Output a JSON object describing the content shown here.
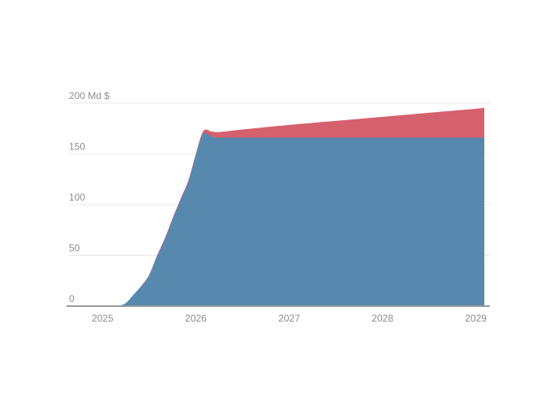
{
  "chart_data": {
    "type": "area",
    "stacked": true,
    "title": "",
    "unit_label": "Md $",
    "grid": true,
    "legend_position": "none",
    "x_ticks": [
      2025,
      2026,
      2027,
      2028,
      2029
    ],
    "x_tick_labels": [
      "2025",
      "2026",
      "2027",
      "2028",
      "2029"
    ],
    "y_ticks": [
      0,
      50,
      100,
      150,
      200
    ],
    "y_tick_labels": [
      "0",
      "50",
      "100",
      "150",
      "200 Md $"
    ],
    "xlim": [
      2024.64,
      2029.15
    ],
    "ylim": [
      0,
      200
    ],
    "colors": {
      "background": "#ffffff",
      "gridline": "#e8e8e8",
      "axis_line": "#999999",
      "tick_text": "#8d8d8d",
      "blue_area": "#5689ad",
      "red_area": "#d5606e"
    },
    "x": [
      2025.17,
      2025.25,
      2025.33,
      2025.42,
      2025.5,
      2025.58,
      2025.67,
      2025.75,
      2025.83,
      2025.92,
      2026.0,
      2026.08,
      2026.17,
      2026.25,
      2026.5,
      2027.0,
      2027.5,
      2028.0,
      2028.5,
      2029.0,
      2029.09
    ],
    "series": [
      {
        "name": "blue-area",
        "color": "#5689ad",
        "values": [
          0,
          3,
          11,
          20,
          30,
          48,
          66,
          85,
          103,
          122,
          148,
          170,
          167,
          166,
          166,
          166,
          166,
          166,
          166,
          166,
          166
        ]
      },
      {
        "name": "red-area",
        "color": "#d5606e",
        "values": [
          0,
          0,
          0,
          0.5,
          1,
          1,
          1.5,
          1.5,
          1.5,
          2,
          2,
          2.5,
          5,
          5.5,
          8,
          12.5,
          16.5,
          20.5,
          24.5,
          28.5,
          29.5
        ]
      }
    ]
  }
}
